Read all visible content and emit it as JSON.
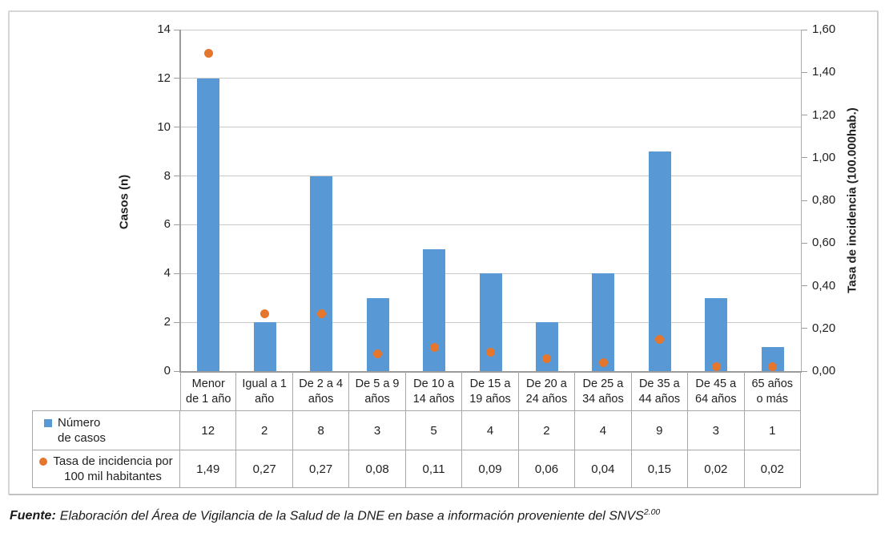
{
  "colors": {
    "bar_blue": "#5899d5",
    "dot_orange": "#e5762e",
    "gridline": "#c9c9c9",
    "axis_line": "#9a9a9a",
    "table_border": "#a8a8a8",
    "frame_border": "#d6d6d6",
    "text": "#1f1f1f"
  },
  "chart_data": {
    "type": "bar",
    "title": "",
    "categories": [
      "Menor\nde 1 año",
      "Igual a 1\naño",
      "De 2 a 4\naños",
      "De 5 a 9\naños",
      "De 10 a\n14 años",
      "De 15 a\n19 años",
      "De 20 a\n24 años",
      "De 25 a\n34 años",
      "De 35 a\n44 años",
      "De 45 a\n64 años",
      "65 años\no más"
    ],
    "series": [
      {
        "name": "Número\nde casos",
        "type": "bar",
        "axis": "left",
        "values": [
          12,
          2,
          8,
          3,
          5,
          4,
          2,
          4,
          9,
          3,
          1
        ],
        "labels": [
          "12",
          "2",
          "8",
          "3",
          "5",
          "4",
          "2",
          "4",
          "9",
          "3",
          "1"
        ]
      },
      {
        "name": "Tasa de incidencia por\n100 mil habitantes",
        "type": "scatter",
        "axis": "right",
        "values": [
          1.49,
          0.27,
          0.27,
          0.08,
          0.11,
          0.09,
          0.06,
          0.04,
          0.15,
          0.02,
          0.02
        ],
        "labels": [
          "1,49",
          "0,27",
          "0,27",
          "0,08",
          "0,11",
          "0,09",
          "0,06",
          "0,04",
          "0,15",
          "0,02",
          "0,02"
        ]
      }
    ],
    "left_axis": {
      "title": "Casos (n)",
      "min": 0,
      "max": 14,
      "step": 2,
      "ticks": [
        "0",
        "2",
        "4",
        "6",
        "8",
        "10",
        "12",
        "14"
      ]
    },
    "right_axis": {
      "title": "Tasa de incidencia (100.000hab.)",
      "min": 0,
      "max": 1.6,
      "step": 0.2,
      "ticks": [
        "0,00",
        "0,20",
        "0,40",
        "0,60",
        "0,80",
        "1,00",
        "1,20",
        "1,40",
        "1,60"
      ]
    },
    "grid": true,
    "legend_position": "table"
  },
  "footer": {
    "source_label": "Fuente:",
    "source_text": "Elaboración del Área de Vigilancia de la Salud de la DNE en base a información proveniente del SNVS",
    "source_superscript": "2.00"
  }
}
